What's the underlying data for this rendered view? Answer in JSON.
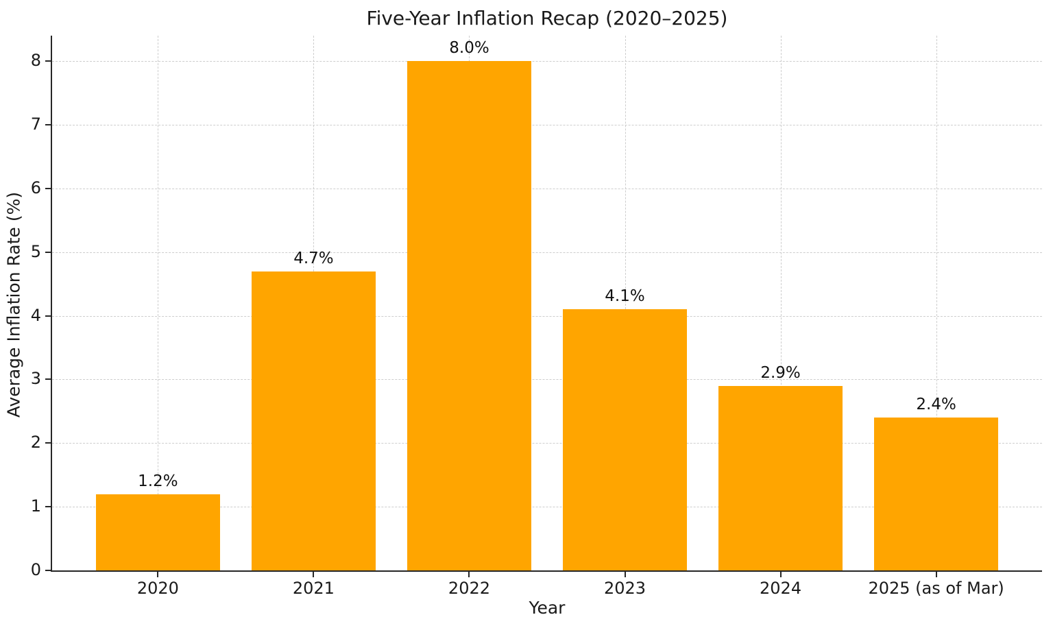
{
  "chart_data": {
    "type": "bar",
    "title": "Five-Year Inflation Recap (2020–2025)",
    "xlabel": "Year",
    "ylabel": "Average Inflation Rate (%)",
    "categories": [
      "2020",
      "2021",
      "2022",
      "2023",
      "2024",
      "2025 (as of Mar)"
    ],
    "values": [
      1.2,
      4.7,
      8.0,
      4.1,
      2.9,
      2.4
    ],
    "bar_labels": [
      "1.2%",
      "4.7%",
      "8.0%",
      "4.1%",
      "2.9%",
      "2.4%"
    ],
    "ylim": [
      0,
      8.4
    ],
    "yticks": [
      0,
      1,
      2,
      3,
      4,
      5,
      6,
      7,
      8
    ],
    "bar_color": "#FFA500",
    "grid": true,
    "grid_style": "dashed",
    "grid_color": "#cdcdcd",
    "legend": "none",
    "bar_width_fraction": 0.8
  }
}
